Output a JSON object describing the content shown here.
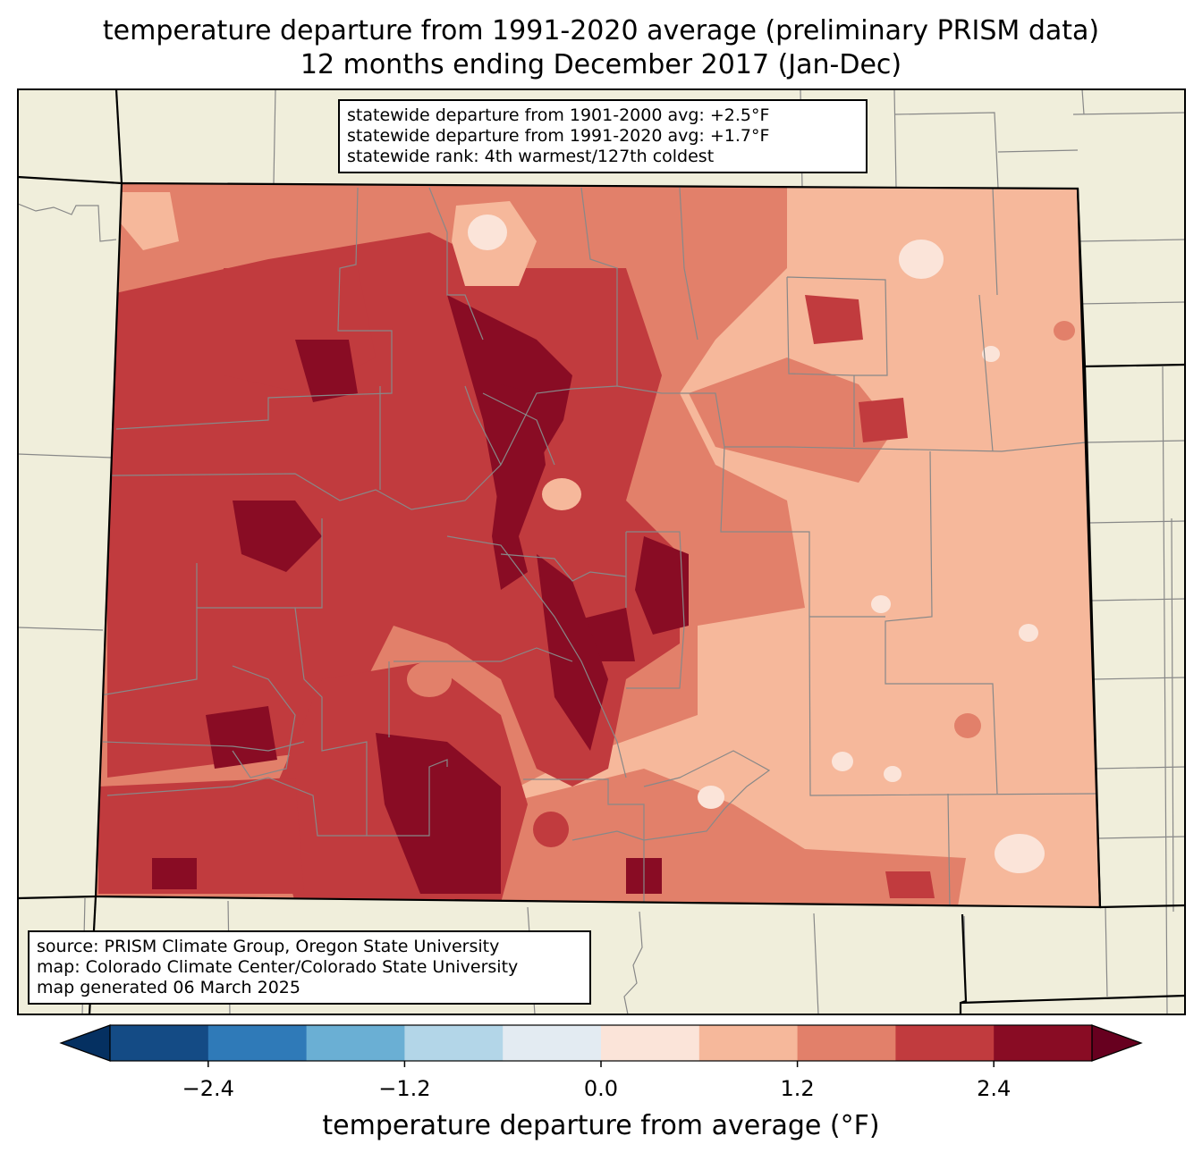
{
  "title": {
    "line1": "temperature departure from 1991-2020 average (preliminary PRISM data)",
    "line2": "12 months ending December 2017 (Jan-Dec)"
  },
  "stats": {
    "line1": "statewide departure from 1901-2000 avg: +2.5°F",
    "line2": "statewide departure from 1991-2020 avg: +1.7°F",
    "line3": "statewide rank: 4th warmest/127th coldest"
  },
  "credits": {
    "line1": "source: PRISM Climate Group, Oregon State University",
    "line2": "map: Colorado Climate Center/Colorado State University",
    "line3": "map generated 06 March 2025"
  },
  "colorbar": {
    "label": "temperature departure from average (°F)",
    "ticks": [
      "−2.4",
      "−1.2",
      "0.0",
      "1.2",
      "2.4"
    ],
    "bounds": [
      -3.0,
      -2.4,
      -1.8,
      -1.2,
      -0.6,
      0.0,
      0.6,
      1.2,
      1.8,
      2.4,
      3.0
    ],
    "colors": [
      "#053061",
      "#144b85",
      "#2f7ab8",
      "#6aafd4",
      "#b3d6e8",
      "#e3ebf2",
      "#fbe4d9",
      "#f6b89b",
      "#e2806a",
      "#c13b3e",
      "#890c24",
      "#67001f"
    ]
  },
  "colors": {
    "land": "#f0eedb",
    "state_border": "#000000",
    "county_border": "#888888"
  }
}
